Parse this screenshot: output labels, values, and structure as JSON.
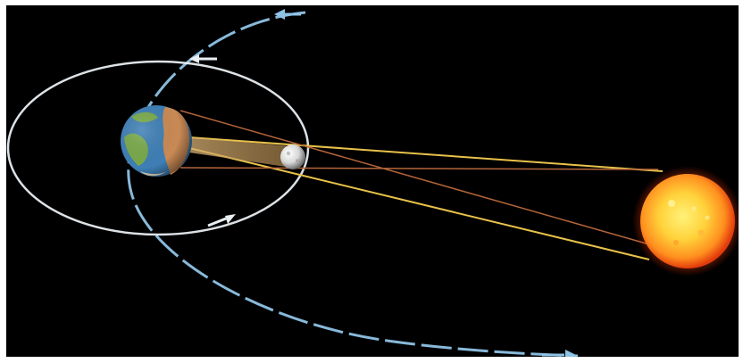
{
  "scene": {
    "bodies": [
      "earth",
      "moon",
      "sun"
    ],
    "colors": {
      "space": "#000000",
      "earth_orbit": "#8fc3e6",
      "moon_orbit": "#e8eef2",
      "sunlight_rays": "#e8c24a",
      "penumbra_rays": "#b5653a",
      "umbra_cone": "#c9a46a",
      "sun_core": "#ffd23a",
      "sun_edge": "#e33b0c",
      "earth_ocean": "#3f7fb5",
      "earth_land_green": "#79a94b",
      "earth_land_brown": "#c98a55",
      "moon": "#d7d7d7"
    },
    "icons": [
      "arrow-left-icon",
      "arrow-left-icon",
      "arrow-right-icon",
      "arrow-right-icon"
    ]
  }
}
